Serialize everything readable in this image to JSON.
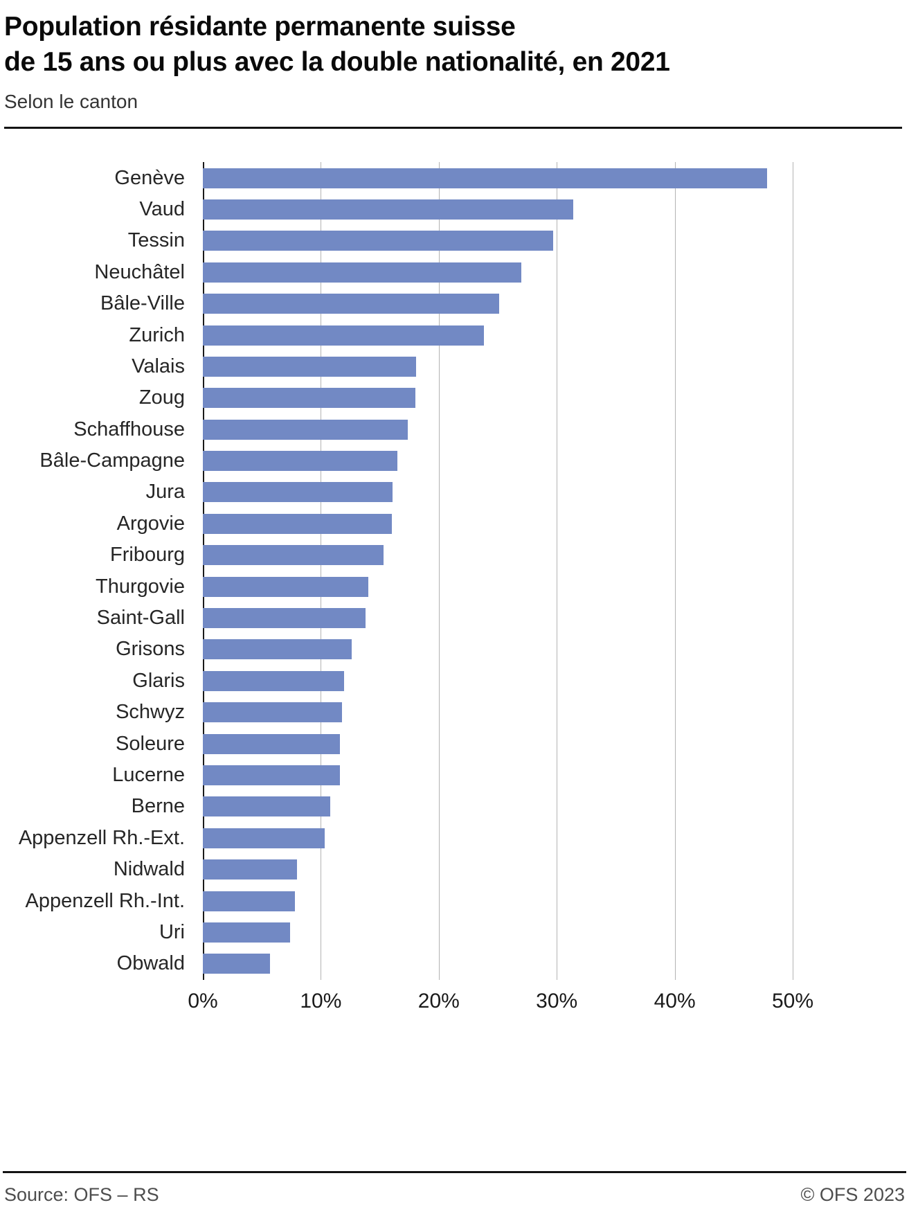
{
  "header": {
    "title": "Population résidante permanente suisse\nde 15 ans ou plus avec la double nationalité, en 2021",
    "subtitle": "Selon le canton"
  },
  "chart_data": {
    "type": "bar",
    "orientation": "horizontal",
    "title": "Population résidante permanente suisse de 15 ans ou plus avec la double nationalité, en 2021",
    "subtitle": "Selon le canton",
    "categories": [
      "Genève",
      "Vaud",
      "Tessin",
      "Neuchâtel",
      "Bâle-Ville",
      "Zurich",
      "Valais",
      "Zoug",
      "Schaffhouse",
      "Bâle-Campagne",
      "Jura",
      "Argovie",
      "Fribourg",
      "Thurgovie",
      "Saint-Gall",
      "Grisons",
      "Glaris",
      "Schwyz",
      "Soleure",
      "Lucerne",
      "Berne",
      "Appenzell Rh.-Ext.",
      "Nidwald",
      "Appenzell Rh.-Int.",
      "Uri",
      "Obwald"
    ],
    "values": [
      47.8,
      31.4,
      29.7,
      27.0,
      25.1,
      23.8,
      18.1,
      18.0,
      17.4,
      16.5,
      16.1,
      16.0,
      15.3,
      14.0,
      13.8,
      12.6,
      12.0,
      11.8,
      11.6,
      11.6,
      10.8,
      10.3,
      8.0,
      7.8,
      7.4,
      5.7
    ],
    "xlabel": "",
    "ylabel": "",
    "xlim": [
      0,
      50
    ],
    "x_ticks": [
      "0%",
      "10%",
      "20%",
      "30%",
      "40%",
      "50%"
    ],
    "bar_color": "#7289c4",
    "grid": true,
    "legend": "none"
  },
  "footer": {
    "source": "Source: OFS – RS",
    "copyright": "© OFS 2023"
  }
}
